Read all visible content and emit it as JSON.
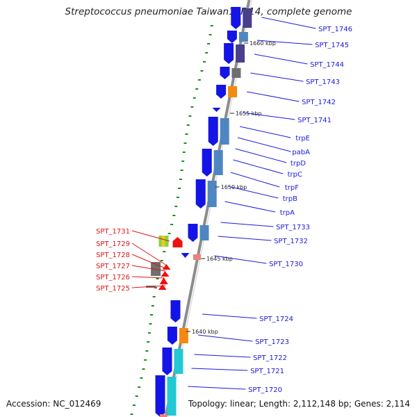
{
  "header": {
    "title": "Streptococcus pneumoniae Taiwan19F-14, complete genome"
  },
  "footer": {
    "accession": "Accession: NC_012469",
    "summary": "Topology: linear; Length: 2,112,148 bp; Genes: 2,114"
  },
  "scale_ticks": [
    "1660 kbp",
    "1655 kbp",
    "1650 kbp",
    "1645 kbp",
    "1640 kbp"
  ],
  "right_labels": [
    "SPT_1746",
    "SPT_1745",
    "SPT_1744",
    "SPT_1743",
    "SPT_1742",
    "SPT_1741",
    "trpE",
    "pabA",
    "trpD",
    "trpC",
    "trpF",
    "trpB",
    "trpA",
    "SPT_1733",
    "SPT_1732",
    "SPT_1730",
    "SPT_1724",
    "SPT_1723",
    "SPT_1722",
    "SPT_1721",
    "SPT_1720"
  ],
  "left_labels": [
    "SPT_1731",
    "SPT_1729",
    "SPT_1728",
    "SPT_1727",
    "SPT_1726",
    "SPT_1725"
  ],
  "colors": {
    "cds": "#1414e6",
    "cds_class_dark": "#4a3f8c",
    "cds_class_blue": "#4f86c2",
    "cds_class_orange": "#f28a12",
    "cds_class_cyan": "#22c8d4",
    "cds_class_gray": "#6e6e6e",
    "reverse_strand": "#ee1111",
    "pink": "#f08080",
    "label_blue": "#1a1adc",
    "label_red": "#e01515",
    "backbone": "#8c8c8c",
    "gc_skew": "#1e8c1e"
  }
}
